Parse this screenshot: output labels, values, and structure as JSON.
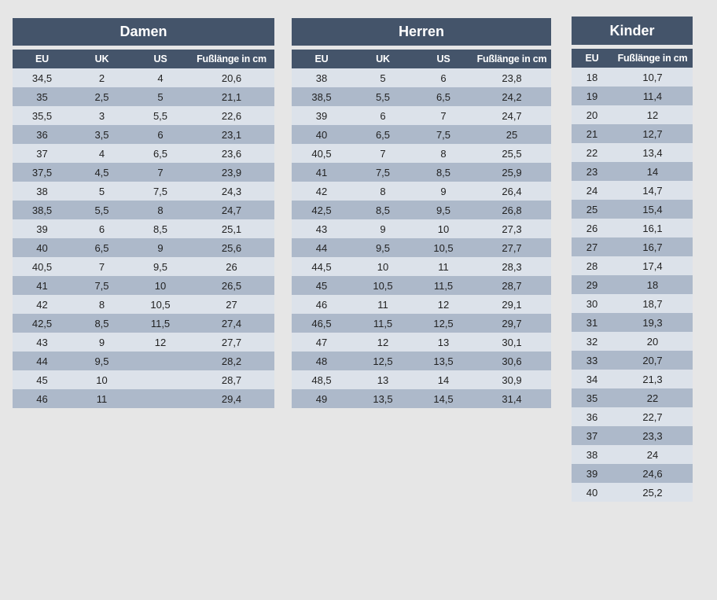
{
  "damen": {
    "title": "Damen",
    "headers": [
      "EU",
      "UK",
      "US",
      "Fußlänge in cm"
    ],
    "rows": [
      [
        "34,5",
        "2",
        "4",
        "20,6"
      ],
      [
        "35",
        "2,5",
        "5",
        "21,1"
      ],
      [
        "35,5",
        "3",
        "5,5",
        "22,6"
      ],
      [
        "36",
        "3,5",
        "6",
        "23,1"
      ],
      [
        "37",
        "4",
        "6,5",
        "23,6"
      ],
      [
        "37,5",
        "4,5",
        "7",
        "23,9"
      ],
      [
        "38",
        "5",
        "7,5",
        "24,3"
      ],
      [
        "38,5",
        "5,5",
        "8",
        "24,7"
      ],
      [
        "39",
        "6",
        "8,5",
        "25,1"
      ],
      [
        "40",
        "6,5",
        "9",
        "25,6"
      ],
      [
        "40,5",
        "7",
        "9,5",
        "26"
      ],
      [
        "41",
        "7,5",
        "10",
        "26,5"
      ],
      [
        "42",
        "8",
        "10,5",
        "27"
      ],
      [
        "42,5",
        "8,5",
        "11,5",
        "27,4"
      ],
      [
        "43",
        "9",
        "12",
        "27,7"
      ],
      [
        "44",
        "9,5",
        "",
        "28,2"
      ],
      [
        "45",
        "10",
        "",
        "28,7"
      ],
      [
        "46",
        "11",
        "",
        "29,4"
      ]
    ]
  },
  "herren": {
    "title": "Herren",
    "headers": [
      "EU",
      "UK",
      "US",
      "Fußlänge in cm"
    ],
    "rows": [
      [
        "38",
        "5",
        "6",
        "23,8"
      ],
      [
        "38,5",
        "5,5",
        "6,5",
        "24,2"
      ],
      [
        "39",
        "6",
        "7",
        "24,7"
      ],
      [
        "40",
        "6,5",
        "7,5",
        "25"
      ],
      [
        "40,5",
        "7",
        "8",
        "25,5"
      ],
      [
        "41",
        "7,5",
        "8,5",
        "25,9"
      ],
      [
        "42",
        "8",
        "9",
        "26,4"
      ],
      [
        "42,5",
        "8,5",
        "9,5",
        "26,8"
      ],
      [
        "43",
        "9",
        "10",
        "27,3"
      ],
      [
        "44",
        "9,5",
        "10,5",
        "27,7"
      ],
      [
        "44,5",
        "10",
        "11",
        "28,3"
      ],
      [
        "45",
        "10,5",
        "11,5",
        "28,7"
      ],
      [
        "46",
        "11",
        "12",
        "29,1"
      ],
      [
        "46,5",
        "11,5",
        "12,5",
        "29,7"
      ],
      [
        "47",
        "12",
        "13",
        "30,1"
      ],
      [
        "48",
        "12,5",
        "13,5",
        "30,6"
      ],
      [
        "48,5",
        "13",
        "14",
        "30,9"
      ],
      [
        "49",
        "13,5",
        "14,5",
        "31,4"
      ]
    ]
  },
  "kinder": {
    "title": "Kinder",
    "headers": [
      "EU",
      "Fußlänge in cm"
    ],
    "rows": [
      [
        "18",
        "10,7"
      ],
      [
        "19",
        "11,4"
      ],
      [
        "20",
        "12"
      ],
      [
        "21",
        "12,7"
      ],
      [
        "22",
        "13,4"
      ],
      [
        "23",
        "14"
      ],
      [
        "24",
        "14,7"
      ],
      [
        "25",
        "15,4"
      ],
      [
        "26",
        "16,1"
      ],
      [
        "27",
        "16,7"
      ],
      [
        "28",
        "17,4"
      ],
      [
        "29",
        "18"
      ],
      [
        "30",
        "18,7"
      ],
      [
        "31",
        "19,3"
      ],
      [
        "32",
        "20"
      ],
      [
        "33",
        "20,7"
      ],
      [
        "34",
        "21,3"
      ],
      [
        "35",
        "22"
      ],
      [
        "36",
        "22,7"
      ],
      [
        "37",
        "23,3"
      ],
      [
        "38",
        "24"
      ],
      [
        "39",
        "24,6"
      ],
      [
        "40",
        "25,2"
      ]
    ]
  },
  "colors": {
    "header_bg": "#44546a",
    "header_text": "#ffffff",
    "row_light": "#dce2ea",
    "row_dark": "#adb9ca",
    "page_bg": "#e6e6e6"
  }
}
